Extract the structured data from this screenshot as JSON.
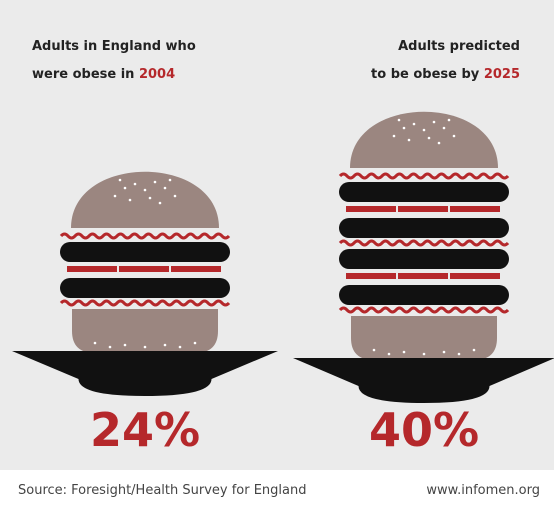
{
  "panels": [
    {
      "line1": "Adults in England who",
      "line2": "were obese in",
      "year": "2004",
      "value": "24%"
    },
    {
      "line1": "Adults predicted",
      "line2": "to be obese by",
      "year": "2025",
      "value": "40%"
    }
  ],
  "footer": {
    "source": "Source: Foresight/Health Survey for England",
    "site": "www.infomen.org"
  }
}
